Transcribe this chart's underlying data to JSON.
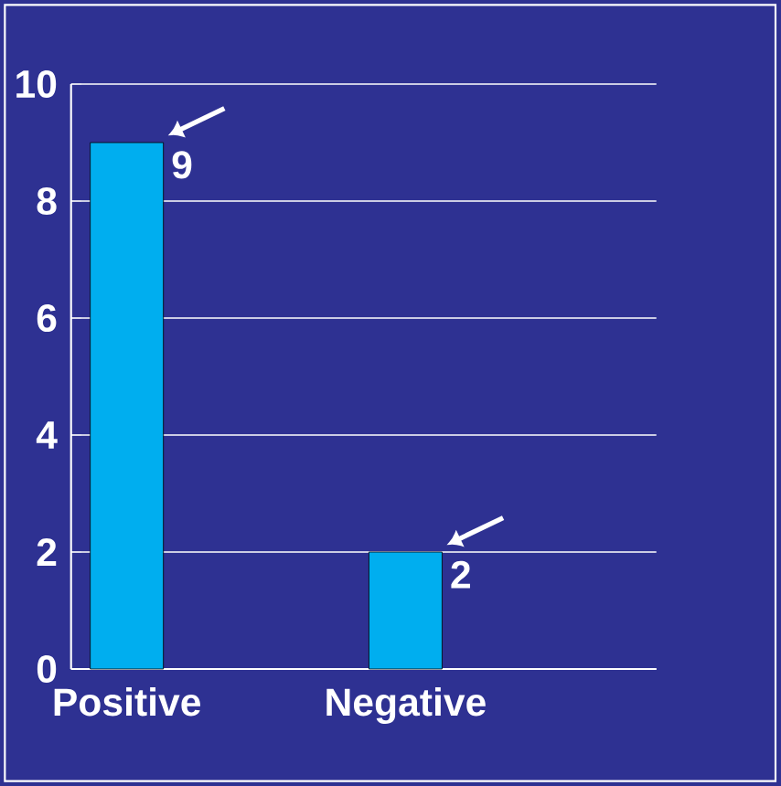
{
  "chart_data": {
    "type": "bar",
    "categories": [
      "Positive",
      "Negative"
    ],
    "values": [
      9,
      2
    ],
    "color": "#00aeef",
    "ylim": [
      0,
      10
    ],
    "yticks": [
      0,
      2,
      4,
      6,
      8,
      10
    ],
    "grid": "y",
    "data_labels": true
  }
}
